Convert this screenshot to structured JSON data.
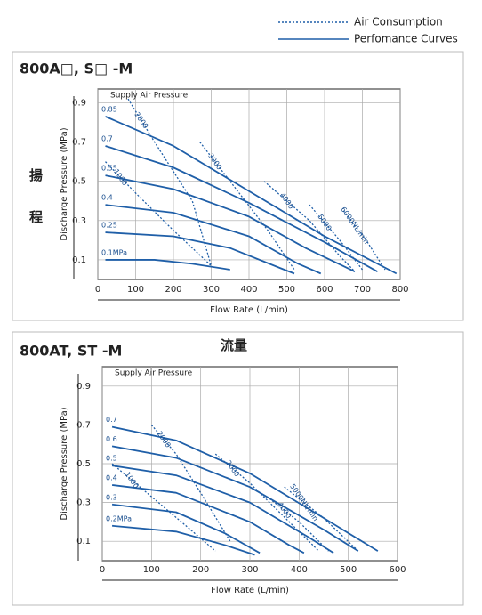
{
  "legend": [
    {
      "label": "Air Consumption",
      "style": "dotted"
    },
    {
      "label": "Perfomance Curves",
      "style": "solid"
    }
  ],
  "side_labels": {
    "head_1": "揚",
    "head_2": "程",
    "flow": "流量"
  },
  "chart_data": [
    {
      "type": "line",
      "title": "800A□, S□ -M",
      "annotation": "Supply Air Pressure",
      "x_label": "Flow Rate (L/min)",
      "y_label": "Discharge Pressure (MPa)",
      "xlim": [
        0,
        800
      ],
      "ylim": [
        0,
        0.97
      ],
      "xticks": [
        0,
        100,
        200,
        300,
        400,
        500,
        600,
        700,
        800
      ],
      "yticks": [
        0.1,
        0.3,
        0.5,
        0.7,
        0.9
      ],
      "grid": true,
      "color": "#1f5fa8",
      "series": [
        {
          "name": "0.85",
          "style": "solid",
          "x": [
            20,
            200,
            400,
            600,
            790
          ],
          "values": [
            0.83,
            0.68,
            0.45,
            0.22,
            0.03
          ]
        },
        {
          "name": "0.7",
          "style": "solid",
          "x": [
            20,
            200,
            400,
            600,
            740
          ],
          "values": [
            0.68,
            0.57,
            0.39,
            0.19,
            0.04
          ]
        },
        {
          "name": "0.55",
          "style": "solid",
          "x": [
            20,
            200,
            400,
            550,
            680
          ],
          "values": [
            0.53,
            0.46,
            0.32,
            0.16,
            0.04
          ]
        },
        {
          "name": "0.4",
          "style": "solid",
          "x": [
            20,
            200,
            400,
            530,
            590
          ],
          "values": [
            0.38,
            0.34,
            0.22,
            0.08,
            0.03
          ]
        },
        {
          "name": "0.25",
          "style": "solid",
          "x": [
            20,
            200,
            350,
            480,
            520
          ],
          "values": [
            0.24,
            0.22,
            0.16,
            0.06,
            0.03
          ]
        },
        {
          "name": "0.1MPa",
          "style": "solid",
          "x": [
            20,
            150,
            250,
            350
          ],
          "values": [
            0.1,
            0.1,
            0.08,
            0.05
          ]
        },
        {
          "name": "1000",
          "style": "dotted",
          "x": [
            20,
            100,
            200,
            300
          ],
          "values": [
            0.6,
            0.44,
            0.25,
            0.07
          ]
        },
        {
          "name": "2000",
          "style": "dotted",
          "x": [
            80,
            150,
            250,
            300
          ],
          "values": [
            0.92,
            0.7,
            0.4,
            0.07
          ]
        },
        {
          "name": "3000",
          "style": "dotted",
          "x": [
            270,
            350,
            450,
            520
          ],
          "values": [
            0.7,
            0.5,
            0.25,
            0.05
          ]
        },
        {
          "name": "4000",
          "style": "dotted",
          "x": [
            440,
            560,
            640,
            680
          ],
          "values": [
            0.5,
            0.3,
            0.12,
            0.04
          ]
        },
        {
          "name": "5000",
          "style": "dotted",
          "x": [
            560,
            640,
            700
          ],
          "values": [
            0.38,
            0.2,
            0.05
          ]
        },
        {
          "name": "6000NL/min",
          "style": "dotted",
          "x": [
            650,
            710,
            760
          ],
          "values": [
            0.35,
            0.2,
            0.05
          ]
        }
      ]
    },
    {
      "type": "line",
      "title": "800AT, ST -M",
      "annotation": "Supply Air Pressure",
      "x_label": "Flow Rate (L/min)",
      "y_label": "Discharge Pressure (MPa)",
      "xlim": [
        0,
        600
      ],
      "ylim": [
        0,
        1.0
      ],
      "xticks": [
        0,
        100,
        200,
        300,
        400,
        500,
        600
      ],
      "yticks": [
        0.1,
        0.3,
        0.5,
        0.7,
        0.9
      ],
      "grid": true,
      "color": "#1f5fa8",
      "series": [
        {
          "name": "0.7",
          "style": "solid",
          "x": [
            20,
            150,
            300,
            450,
            560
          ],
          "values": [
            0.69,
            0.62,
            0.45,
            0.22,
            0.05
          ]
        },
        {
          "name": "0.6",
          "style": "solid",
          "x": [
            20,
            150,
            300,
            450,
            520
          ],
          "values": [
            0.59,
            0.53,
            0.38,
            0.16,
            0.05
          ]
        },
        {
          "name": "0.5",
          "style": "solid",
          "x": [
            20,
            150,
            300,
            420,
            470
          ],
          "values": [
            0.49,
            0.44,
            0.3,
            0.12,
            0.04
          ]
        },
        {
          "name": "0.4",
          "style": "solid",
          "x": [
            20,
            150,
            300,
            380,
            410
          ],
          "values": [
            0.39,
            0.35,
            0.2,
            0.08,
            0.04
          ]
        },
        {
          "name": "0.3",
          "style": "solid",
          "x": [
            20,
            150,
            250,
            320
          ],
          "values": [
            0.29,
            0.25,
            0.14,
            0.04
          ]
        },
        {
          "name": "0.2MPa",
          "style": "solid",
          "x": [
            20,
            150,
            250,
            310
          ],
          "values": [
            0.18,
            0.15,
            0.08,
            0.03
          ]
        },
        {
          "name": "1000",
          "style": "dotted",
          "x": [
            20,
            100,
            170,
            230
          ],
          "values": [
            0.5,
            0.33,
            0.18,
            0.05
          ]
        },
        {
          "name": "2000",
          "style": "dotted",
          "x": [
            100,
            150,
            200,
            260
          ],
          "values": [
            0.7,
            0.55,
            0.35,
            0.1
          ]
        },
        {
          "name": "3000",
          "style": "dotted",
          "x": [
            230,
            300,
            380,
            440
          ],
          "values": [
            0.55,
            0.4,
            0.2,
            0.05
          ]
        },
        {
          "name": "4000",
          "style": "dotted",
          "x": [
            340,
            400,
            460
          ],
          "values": [
            0.32,
            0.2,
            0.05
          ]
        },
        {
          "name": "5000NL/min",
          "style": "dotted",
          "x": [
            370,
            450,
            520
          ],
          "values": [
            0.38,
            0.22,
            0.05
          ]
        }
      ]
    }
  ]
}
